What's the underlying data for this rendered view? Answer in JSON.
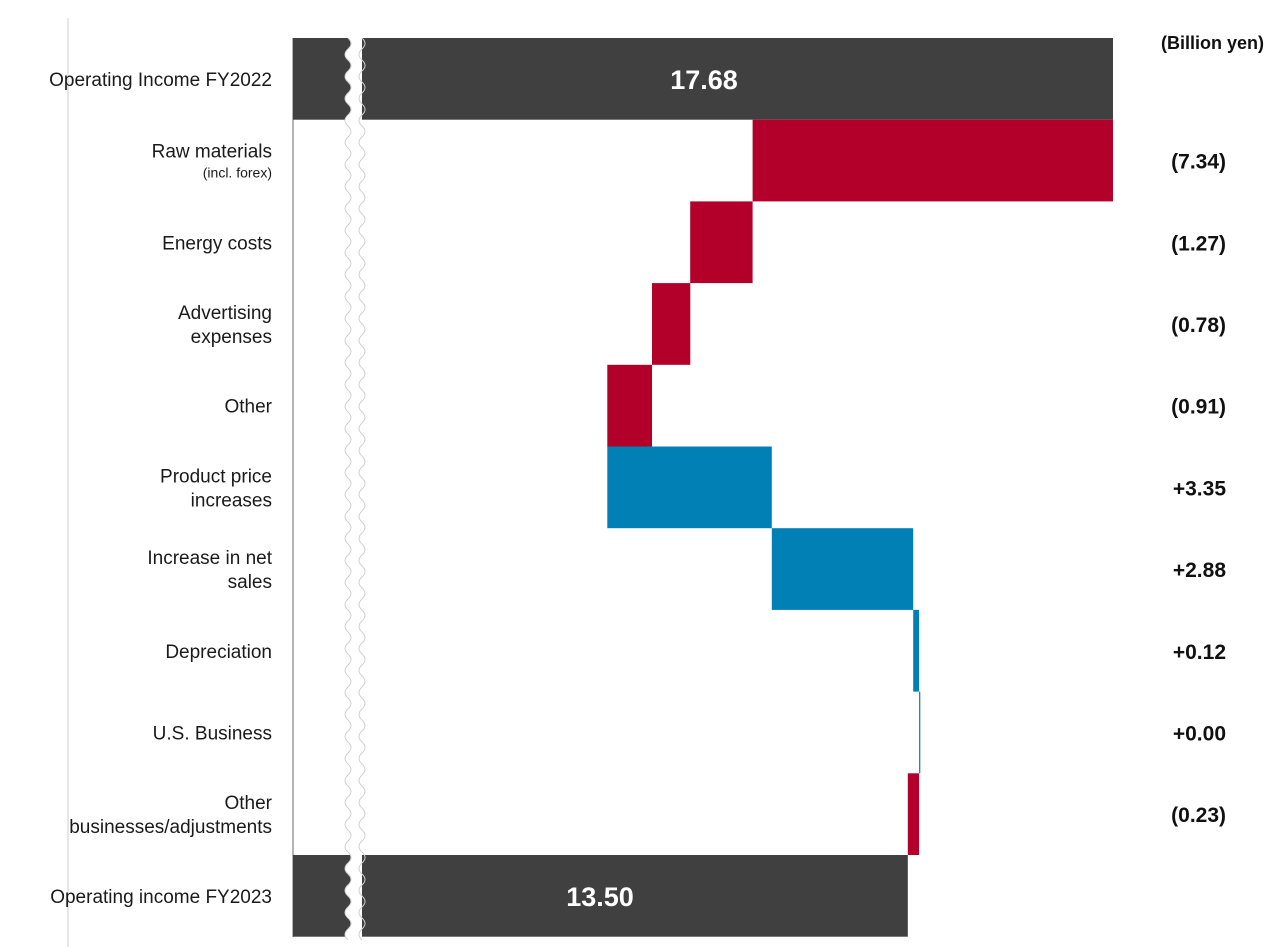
{
  "chart_data": {
    "type": "bar",
    "subtype": "waterfall",
    "orientation": "horizontal",
    "unit": "(Billion yen)",
    "axis_break": true,
    "categories": [
      {
        "label": "Operating Income FY2022",
        "sublabel": "",
        "kind": "total",
        "value": 17.68,
        "value_label": "17.68"
      },
      {
        "label": "Raw materials",
        "sublabel": "(incl. forex)",
        "kind": "delta",
        "value": -7.34,
        "value_label": "(7.34)"
      },
      {
        "label": "Energy costs",
        "sublabel": "",
        "kind": "delta",
        "value": -1.27,
        "value_label": "(1.27)"
      },
      {
        "label": "Advertising expenses",
        "sublabel": "",
        "kind": "delta",
        "value": -0.78,
        "value_label": "(0.78)"
      },
      {
        "label": "Other",
        "sublabel": "",
        "kind": "delta",
        "value": -0.91,
        "value_label": "(0.91)"
      },
      {
        "label": "Product price increases",
        "sublabel": "",
        "kind": "delta",
        "value": 3.35,
        "value_label": "+3.35"
      },
      {
        "label": "Increase in net sales",
        "sublabel": "",
        "kind": "delta",
        "value": 2.88,
        "value_label": "+2.88"
      },
      {
        "label": "Depreciation",
        "sublabel": "",
        "kind": "delta",
        "value": 0.12,
        "value_label": "+0.12"
      },
      {
        "label": "U.S. Business",
        "sublabel": "",
        "kind": "delta",
        "value": 0.0,
        "value_label": "+0.00"
      },
      {
        "label": "Other businesses/adjustments",
        "sublabel": "",
        "kind": "delta",
        "value": -0.23,
        "value_label": "(0.23)"
      },
      {
        "label": "Operating income FY2023",
        "sublabel": "",
        "kind": "total",
        "value": 13.5,
        "value_label": "13.50"
      }
    ],
    "colors": {
      "total": "#404040",
      "decrease": "#b3002a",
      "increase": "#0080b4"
    }
  }
}
